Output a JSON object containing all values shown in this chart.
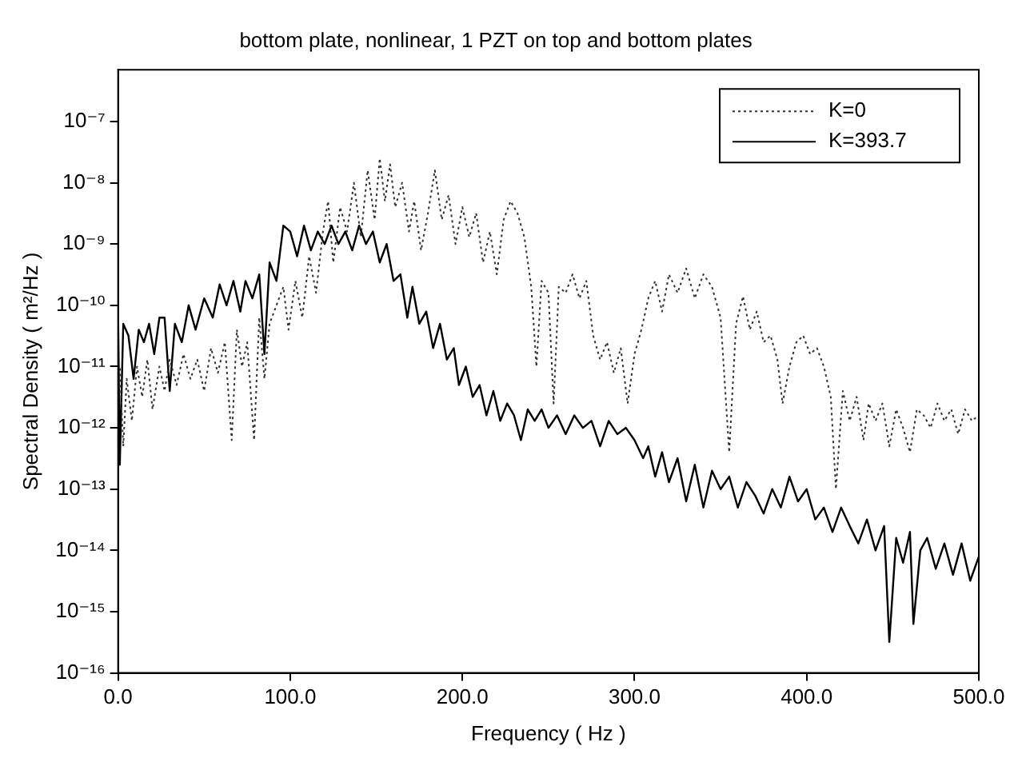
{
  "chart_data": {
    "type": "line",
    "title": "bottom plate, nonlinear, 1 PZT on top and bottom plates",
    "xlabel": "Frequency ( Hz )",
    "ylabel": "Spectral Density ( m²/Hz )",
    "log": "y",
    "grid": false,
    "legend": "top right",
    "marker": "none",
    "xlim": [
      0,
      500
    ],
    "xticks": [
      {
        "value": 0,
        "label": "0.0"
      },
      {
        "value": 100,
        "label": "100.0"
      },
      {
        "value": 200,
        "label": "200.0"
      },
      {
        "value": 300,
        "label": "300.0"
      },
      {
        "value": 400,
        "label": "400.0"
      },
      {
        "value": 500,
        "label": "500.0"
      }
    ],
    "ylim": [
      1e-16,
      7e-07
    ],
    "yticks": [
      {
        "value": 1e-16,
        "label": "10⁻¹⁶"
      },
      {
        "value": 1e-15,
        "label": "10⁻¹⁵"
      },
      {
        "value": 1e-14,
        "label": "10⁻¹⁴"
      },
      {
        "value": 1e-13,
        "label": "10⁻¹³"
      },
      {
        "value": 1e-12,
        "label": "10⁻¹²"
      },
      {
        "value": 1e-11,
        "label": "10⁻¹¹"
      },
      {
        "value": 1e-10,
        "label": "10⁻¹⁰"
      },
      {
        "value": 1e-09,
        "label": "10⁻⁹"
      },
      {
        "value": 1e-08,
        "label": "10⁻⁸"
      },
      {
        "value": 1e-07,
        "label": "10⁻⁷"
      }
    ],
    "series": [
      {
        "name": "K=0",
        "color": "#333333",
        "line_style": "dotted",
        "x": [
          0,
          1,
          3,
          5,
          8,
          11,
          14,
          17,
          20,
          24,
          27,
          30,
          34,
          38,
          42,
          46,
          50,
          54,
          58,
          62,
          66,
          69,
          72,
          75,
          79,
          82,
          85,
          88,
          92,
          96,
          99,
          103,
          107,
          111,
          115,
          119,
          122,
          125,
          129,
          133,
          137,
          141,
          145,
          149,
          152,
          155,
          158,
          161,
          165,
          169,
          172,
          176,
          180,
          184,
          188,
          192,
          196,
          200,
          204,
          208,
          212,
          216,
          220,
          224,
          228,
          232,
          236,
          240,
          243,
          246,
          250,
          253,
          256,
          260,
          264,
          268,
          272,
          276,
          280,
          284,
          288,
          292,
          296,
          300,
          304,
          308,
          312,
          316,
          320,
          325,
          330,
          335,
          340,
          345,
          350,
          355,
          359,
          363,
          367,
          371,
          375,
          379,
          383,
          386,
          390,
          394,
          398,
          402,
          406,
          410,
          414,
          417,
          421,
          425,
          429,
          433,
          436,
          440,
          444,
          448,
          452,
          456,
          460,
          464,
          468,
          472,
          476,
          480,
          484,
          488,
          492,
          496,
          500
        ],
        "values": [
          1.6e-12,
          1e-11,
          5e-13,
          6.3e-12,
          1.3e-12,
          1e-11,
          3.2e-12,
          1.3e-11,
          2e-12,
          1e-11,
          4e-12,
          1.3e-11,
          5e-12,
          1.6e-11,
          6.3e-12,
          1.3e-11,
          4e-12,
          2e-11,
          7.9e-12,
          2.5e-11,
          6.3e-13,
          4e-11,
          1e-11,
          2.5e-11,
          6.3e-13,
          6.3e-11,
          6.3e-12,
          5e-11,
          1e-10,
          2e-10,
          4e-11,
          2.5e-10,
          6.3e-11,
          6.3e-10,
          1.6e-10,
          1.6e-09,
          5e-09,
          5e-10,
          4e-09,
          1.6e-09,
          1e-08,
          1.3e-09,
          1.6e-08,
          2.5e-09,
          2.5e-08,
          5e-09,
          2e-08,
          4e-09,
          1e-08,
          1.6e-09,
          5e-09,
          7.9e-10,
          3.2e-09,
          1.6e-08,
          2.5e-09,
          6.3e-09,
          1e-09,
          4e-09,
          1.3e-09,
          3.2e-09,
          5e-10,
          1.6e-09,
          3.2e-10,
          2.5e-09,
          5e-09,
          3.2e-09,
          1.3e-09,
          2e-10,
          1e-11,
          2.5e-10,
          1.6e-10,
          2.5e-12,
          2e-10,
          1.6e-10,
          3.2e-10,
          1.3e-10,
          2.5e-10,
          3.2e-11,
          1.3e-11,
          2.5e-11,
          7.9e-12,
          2e-11,
          2.5e-12,
          1.6e-11,
          4e-11,
          1.3e-10,
          2.5e-10,
          7.9e-11,
          3.2e-10,
          1.6e-10,
          4e-10,
          1.3e-10,
          3.2e-10,
          2e-10,
          6.3e-11,
          4e-13,
          5e-11,
          1.4e-10,
          4e-11,
          7.9e-11,
          2.5e-11,
          3.2e-11,
          1.3e-11,
          2.5e-12,
          1e-11,
          2.5e-11,
          3.2e-11,
          1.6e-11,
          2e-11,
          1e-11,
          3.2e-12,
          1e-13,
          4e-12,
          1.3e-12,
          3.2e-12,
          6.3e-13,
          2.5e-12,
          1.3e-12,
          2.5e-12,
          5e-13,
          2e-12,
          1e-12,
          4e-13,
          2e-12,
          1.6e-12,
          1e-12,
          2.5e-12,
          1.3e-12,
          2e-12,
          7.9e-13,
          2e-12,
          1.3e-12,
          1.6e-12
        ]
      },
      {
        "name": "K=393.7",
        "color": "#000000",
        "line_style": "solid",
        "x": [
          0,
          1,
          3,
          6,
          9,
          12,
          15,
          18,
          21,
          24,
          27,
          30,
          33,
          37,
          41,
          45,
          50,
          55,
          59,
          63,
          67,
          71,
          74,
          78,
          82,
          85,
          88,
          92,
          96,
          100,
          104,
          108,
          112,
          116,
          120,
          124,
          128,
          132,
          136,
          140,
          144,
          148,
          152,
          156,
          160,
          164,
          168,
          171,
          175,
          179,
          183,
          187,
          191,
          195,
          198,
          202,
          206,
          210,
          214,
          218,
          222,
          226,
          230,
          234,
          238,
          242,
          246,
          250,
          255,
          260,
          265,
          270,
          275,
          280,
          285,
          290,
          295,
          300,
          305,
          308,
          312,
          316,
          320,
          325,
          330,
          335,
          340,
          345,
          350,
          355,
          360,
          365,
          370,
          375,
          380,
          385,
          390,
          395,
          400,
          405,
          410,
          415,
          420,
          425,
          430,
          435,
          440,
          445,
          448,
          452,
          456,
          460,
          462,
          466,
          470,
          475,
          480,
          485,
          490,
          495,
          500
        ],
        "values": [
          7.9e-11,
          2.5e-13,
          5e-11,
          3.2e-11,
          6.3e-12,
          4e-11,
          2.5e-11,
          5e-11,
          1.6e-11,
          6.3e-11,
          6.3e-11,
          4e-12,
          5e-11,
          2.5e-11,
          1e-10,
          4e-11,
          1.3e-10,
          6.3e-11,
          2.2e-10,
          1e-10,
          2.5e-10,
          7.9e-11,
          2.5e-10,
          1.3e-10,
          3.2e-10,
          1.6e-11,
          5e-10,
          2.5e-10,
          2e-09,
          1.6e-09,
          6.3e-10,
          2e-09,
          7.9e-10,
          1.6e-09,
          1e-09,
          2e-09,
          1e-09,
          1.6e-09,
          7.9e-10,
          2e-09,
          1e-09,
          1.6e-09,
          5e-10,
          1e-09,
          2.5e-10,
          3.2e-10,
          6.3e-11,
          2e-10,
          5e-11,
          7.9e-11,
          2e-11,
          5e-11,
          1.3e-11,
          2e-11,
          5e-12,
          1e-11,
          3.2e-12,
          5e-12,
          1.6e-12,
          4e-12,
          1.3e-12,
          2.5e-12,
          1.6e-12,
          6.3e-13,
          2e-12,
          1.3e-12,
          2e-12,
          1e-12,
          1.6e-12,
          7.9e-13,
          1.6e-12,
          1e-12,
          1.3e-12,
          5e-13,
          1.3e-12,
          7.9e-13,
          1e-12,
          6.3e-13,
          3.2e-13,
          5e-13,
          1.6e-13,
          4e-13,
          1.3e-13,
          3.2e-13,
          6.3e-14,
          2.5e-13,
          5e-14,
          2e-13,
          1e-13,
          1.6e-13,
          5e-14,
          1.3e-13,
          7.9e-14,
          4e-14,
          1e-13,
          5e-14,
          1.6e-13,
          6.3e-14,
          1e-13,
          3.2e-14,
          5e-14,
          2e-14,
          5e-14,
          2.5e-14,
          1.3e-14,
          3.2e-14,
          1e-14,
          2.5e-14,
          3.2e-16,
          1.6e-14,
          6.3e-15,
          2e-14,
          6.3e-16,
          1e-14,
          1.6e-14,
          5e-15,
          1.3e-14,
          4e-15,
          1.3e-14,
          3.2e-15,
          7.9e-15
        ]
      }
    ]
  }
}
